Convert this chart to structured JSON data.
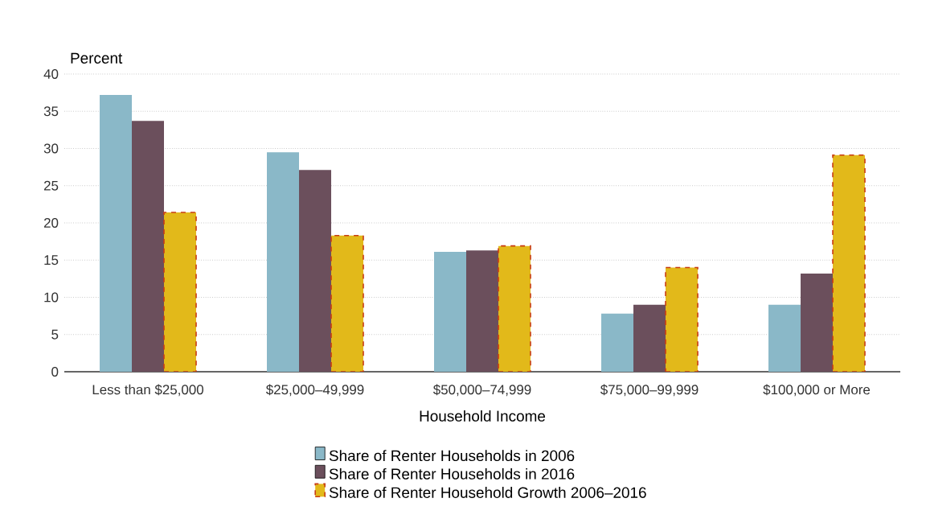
{
  "chart_data": {
    "type": "bar",
    "ylabel": "Percent",
    "xlabel": "Household Income",
    "categories": [
      "Less than $25,000",
      "$25,000–49,999",
      "$50,000–74,999",
      "$75,000–99,999",
      "$100,000 or More"
    ],
    "series": [
      {
        "name": "Share of Renter Households in 2006",
        "color": "#8ab8c8",
        "values": [
          37.2,
          29.5,
          16.1,
          7.8,
          9.0
        ]
      },
      {
        "name": "Share of Renter Households in 2016",
        "color": "#6b4f5c",
        "values": [
          33.7,
          27.1,
          16.3,
          9.0,
          13.2
        ]
      },
      {
        "name": "Share of Renter Household Growth 2006–2016",
        "color": "#e2b91a",
        "line_style": "dashed",
        "values": [
          21.4,
          18.3,
          16.9,
          14.0,
          29.1
        ]
      }
    ],
    "ylim": [
      0,
      40
    ],
    "yticks": [
      0,
      5,
      10,
      15,
      20,
      25,
      30,
      35,
      40
    ],
    "grid": "y",
    "legend": "bottom"
  }
}
